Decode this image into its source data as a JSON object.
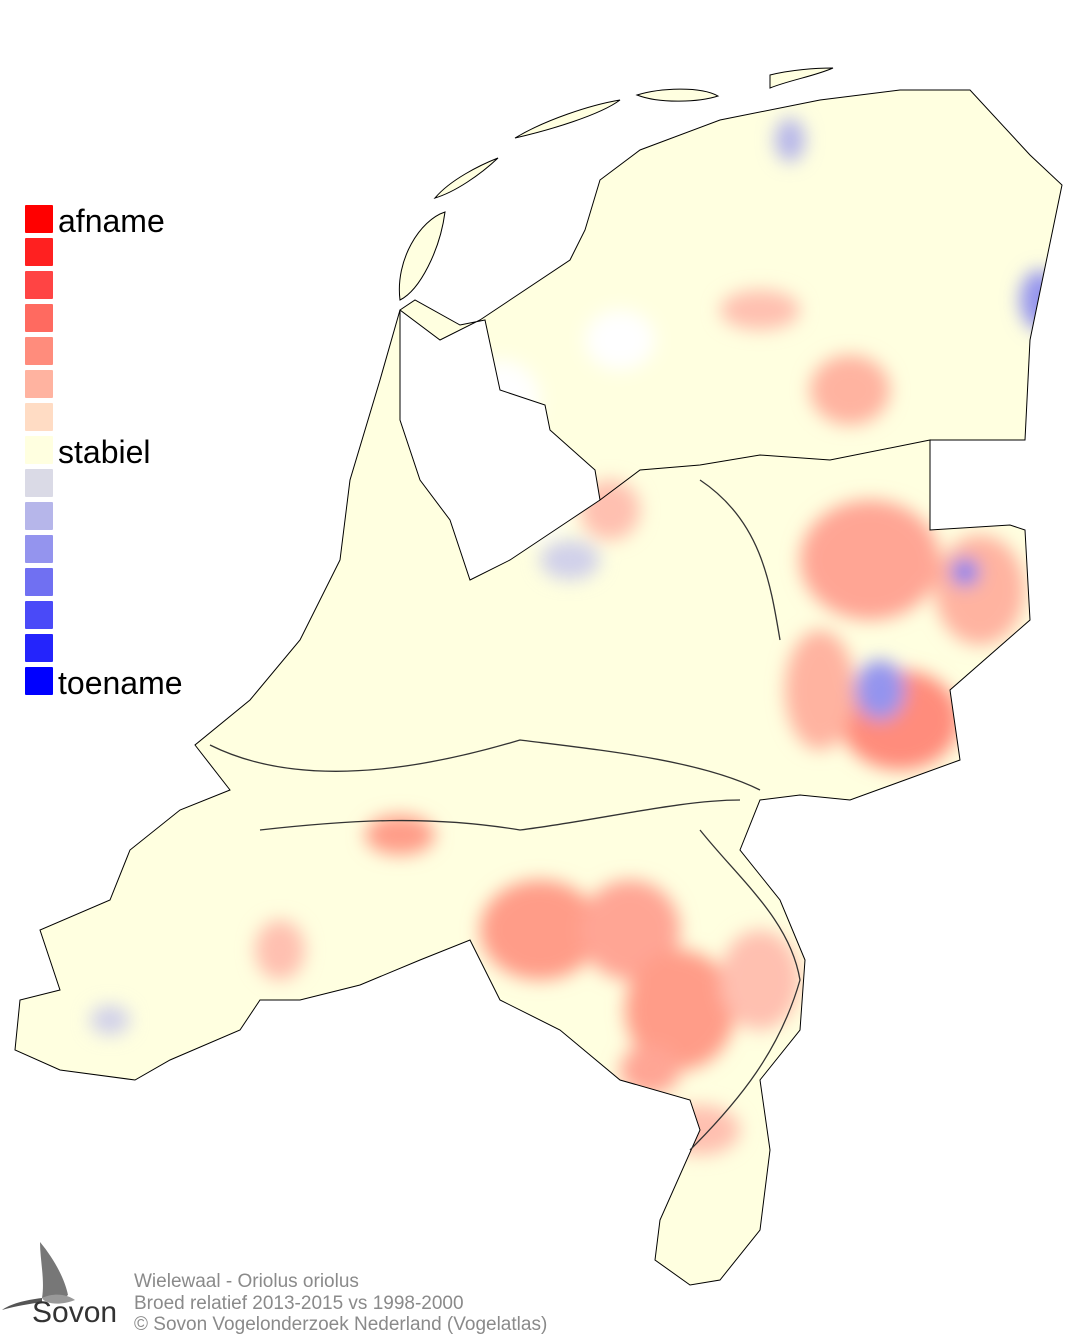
{
  "legend": {
    "colors": [
      "#ff0000",
      "#ff2020",
      "#ff4444",
      "#ff6a60",
      "#ff8c7c",
      "#ffb3a0",
      "#ffdcc4",
      "#ffffe0",
      "#dadae6",
      "#b6b6ea",
      "#9494ee",
      "#7070f2",
      "#4a4af8",
      "#2424fc",
      "#0000ff"
    ],
    "label_top": "afname",
    "label_mid": "stabiel",
    "label_bottom": "toename"
  },
  "footer": {
    "species": "Wielewaal - Oriolus oriolus",
    "comparison": "Broed relatief 2013-2015 vs 1998-2000",
    "copyright": "© Sovon Vogelonderzoek Nederland (Vogelatlas)"
  },
  "logo": {
    "text": "Sovon"
  },
  "map_colors": {
    "stable": "#ffffe0",
    "decline_light": "#ffcdb8",
    "decline": "#ff9c88",
    "increase_light": "#d8d8e8",
    "increase": "#9090ea",
    "border": "#000000"
  }
}
